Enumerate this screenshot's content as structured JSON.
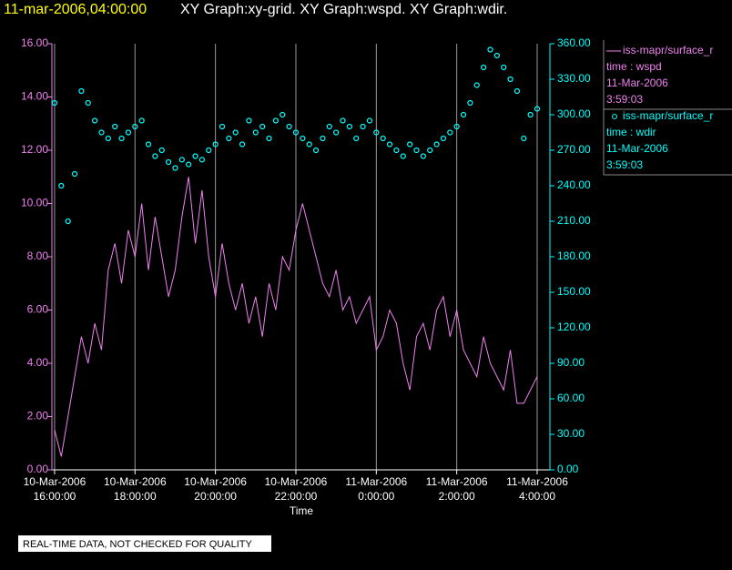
{
  "chart_data": {
    "type": "line-scatter",
    "title_time": "11-mar-2006,04:00:00",
    "title": "XY Graph:xy-grid.  XY Graph:wspd.  XY Graph:wdir.",
    "x_label": "Time",
    "note": "REAL-TIME DATA, NOT CHECKED FOR QUALITY",
    "grid": true,
    "xlim": [
      "2006-03-10T15:56:00",
      "2006-03-11T04:19:00"
    ],
    "xticks": [
      {
        "value": "2006-03-10T16:00:00",
        "label": [
          "10-Mar-2006",
          "16:00:00"
        ]
      },
      {
        "value": "2006-03-10T18:00:00",
        "label": [
          "10-Mar-2006",
          "18:00:00"
        ]
      },
      {
        "value": "2006-03-10T20:00:00",
        "label": [
          "10-Mar-2006",
          "20:00:00"
        ]
      },
      {
        "value": "2006-03-10T22:00:00",
        "label": [
          "10-Mar-2006",
          "22:00:00"
        ]
      },
      {
        "value": "2006-03-11T00:00:00",
        "label": [
          "11-Mar-2006",
          "0:00:00"
        ]
      },
      {
        "value": "2006-03-11T02:00:00",
        "label": [
          "11-Mar-2006",
          "2:00:00"
        ]
      },
      {
        "value": "2006-03-11T04:00:00",
        "label": [
          "11-Mar-2006",
          "4:00:00"
        ]
      }
    ],
    "ylim": [
      0,
      16
    ],
    "yticks": [
      {
        "value": 0,
        "label": "0.00"
      },
      {
        "value": 2,
        "label": "2.00"
      },
      {
        "value": 4,
        "label": "4.00"
      },
      {
        "value": 6,
        "label": "6.00"
      },
      {
        "value": 8,
        "label": "8.00"
      },
      {
        "value": 10,
        "label": "10.00"
      },
      {
        "value": 12,
        "label": "12.00"
      },
      {
        "value": 14,
        "label": "14.00"
      },
      {
        "value": 16,
        "label": "16.00"
      }
    ],
    "y2lim": [
      0,
      360
    ],
    "y2ticks": [
      {
        "value": 0,
        "label": "0.00"
      },
      {
        "value": 30,
        "label": "30.00"
      },
      {
        "value": 60,
        "label": "60.00"
      },
      {
        "value": 90,
        "label": "90.00"
      },
      {
        "value": 120,
        "label": "120.00"
      },
      {
        "value": 150,
        "label": "150.00"
      },
      {
        "value": 180,
        "label": "180.00"
      },
      {
        "value": 210,
        "label": "210.00"
      },
      {
        "value": 240,
        "label": "240.00"
      },
      {
        "value": 270,
        "label": "270.00"
      },
      {
        "value": 300,
        "label": "300.00"
      },
      {
        "value": 330,
        "label": "330.00"
      },
      {
        "value": 360,
        "label": "360.00"
      }
    ],
    "x": [
      "2006-03-10T16:00:00",
      "2006-03-10T16:10:00",
      "2006-03-10T16:20:00",
      "2006-03-10T16:30:00",
      "2006-03-10T16:40:00",
      "2006-03-10T16:50:00",
      "2006-03-10T17:00:00",
      "2006-03-10T17:10:00",
      "2006-03-10T17:20:00",
      "2006-03-10T17:30:00",
      "2006-03-10T17:40:00",
      "2006-03-10T17:50:00",
      "2006-03-10T18:00:00",
      "2006-03-10T18:10:00",
      "2006-03-10T18:20:00",
      "2006-03-10T18:30:00",
      "2006-03-10T18:40:00",
      "2006-03-10T18:50:00",
      "2006-03-10T19:00:00",
      "2006-03-10T19:10:00",
      "2006-03-10T19:20:00",
      "2006-03-10T19:30:00",
      "2006-03-10T19:40:00",
      "2006-03-10T19:50:00",
      "2006-03-10T20:00:00",
      "2006-03-10T20:10:00",
      "2006-03-10T20:20:00",
      "2006-03-10T20:30:00",
      "2006-03-10T20:40:00",
      "2006-03-10T20:50:00",
      "2006-03-10T21:00:00",
      "2006-03-10T21:10:00",
      "2006-03-10T21:20:00",
      "2006-03-10T21:30:00",
      "2006-03-10T21:40:00",
      "2006-03-10T21:50:00",
      "2006-03-10T22:00:00",
      "2006-03-10T22:10:00",
      "2006-03-10T22:20:00",
      "2006-03-10T22:30:00",
      "2006-03-10T22:40:00",
      "2006-03-10T22:50:00",
      "2006-03-10T23:00:00",
      "2006-03-10T23:10:00",
      "2006-03-10T23:20:00",
      "2006-03-10T23:30:00",
      "2006-03-10T23:40:00",
      "2006-03-10T23:50:00",
      "2006-03-11T00:00:00",
      "2006-03-11T00:10:00",
      "2006-03-11T00:20:00",
      "2006-03-11T00:30:00",
      "2006-03-11T00:40:00",
      "2006-03-11T00:50:00",
      "2006-03-11T01:00:00",
      "2006-03-11T01:10:00",
      "2006-03-11T01:20:00",
      "2006-03-11T01:30:00",
      "2006-03-11T01:40:00",
      "2006-03-11T01:50:00",
      "2006-03-11T02:00:00",
      "2006-03-11T02:10:00",
      "2006-03-11T02:20:00",
      "2006-03-11T02:30:00",
      "2006-03-11T02:40:00",
      "2006-03-11T02:50:00",
      "2006-03-11T03:00:00",
      "2006-03-11T03:10:00",
      "2006-03-11T03:20:00",
      "2006-03-11T03:30:00",
      "2006-03-11T03:40:00",
      "2006-03-11T03:50:00",
      "2006-03-11T04:00:00"
    ],
    "series": [
      {
        "name": "iss-mapr/surface_r",
        "legend_lines": [
          "time : wspd",
          "11-Mar-2006",
          "3:59:03"
        ],
        "color": "#ee82ee",
        "mark": "line",
        "values": [
          1.5,
          0.5,
          2.0,
          3.5,
          5.0,
          4.0,
          5.5,
          4.5,
          7.5,
          8.5,
          7.0,
          9.0,
          8.0,
          10.0,
          7.5,
          9.5,
          8.0,
          6.5,
          7.5,
          9.5,
          11.0,
          8.5,
          10.5,
          8.0,
          6.5,
          8.5,
          7.0,
          6.0,
          7.0,
          5.5,
          6.5,
          5.0,
          7.0,
          6.0,
          8.0,
          7.5,
          9.0,
          10.0,
          9.0,
          8.0,
          7.0,
          6.5,
          7.5,
          6.0,
          6.5,
          5.5,
          6.0,
          6.5,
          4.5,
          5.0,
          6.0,
          5.5,
          4.0,
          3.0,
          5.0,
          5.5,
          4.5,
          6.0,
          6.5,
          5.0,
          6.0,
          4.5,
          4.0,
          3.5,
          5.0,
          4.0,
          3.5,
          3.0,
          4.5,
          2.5,
          2.5,
          3.0,
          3.5
        ]
      },
      {
        "name": "iss-mapr/surface_r",
        "legend_lines": [
          "time : wdir",
          "11-Mar-2006",
          "3:59:03"
        ],
        "color": "#00ffff",
        "mark": "scatter",
        "axis": "y2",
        "values": [
          310,
          240,
          210,
          250,
          320,
          310,
          295,
          285,
          280,
          290,
          280,
          285,
          290,
          295,
          275,
          265,
          270,
          260,
          255,
          262,
          258,
          265,
          262,
          270,
          275,
          290,
          280,
          285,
          275,
          295,
          285,
          290,
          280,
          295,
          300,
          290,
          285,
          280,
          275,
          270,
          280,
          290,
          285,
          295,
          290,
          280,
          290,
          295,
          285,
          280,
          275,
          270,
          265,
          275,
          270,
          265,
          270,
          275,
          280,
          285,
          290,
          300,
          310,
          325,
          340,
          355,
          350,
          340,
          330,
          320,
          280,
          300,
          305
        ]
      }
    ]
  }
}
